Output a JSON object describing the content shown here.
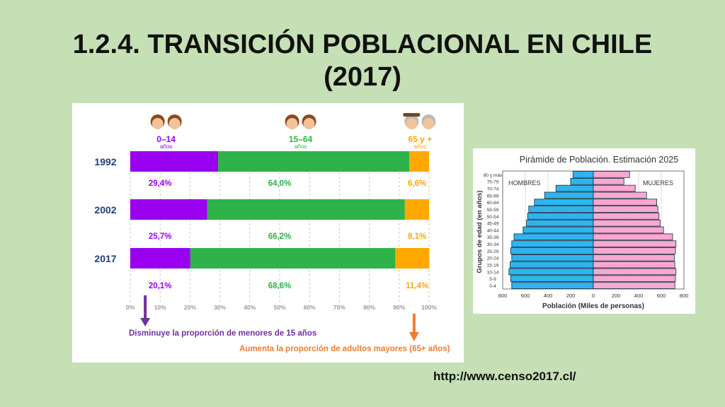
{
  "title": {
    "line1": "1.2.4. TRANSICIÓN POBLACIONAL EN CHILE",
    "line2": "(2017)"
  },
  "source_url": "http://www.censo2017.cl/",
  "colors": {
    "young": "#9900ee",
    "adult": "#2db34a",
    "old": "#ffa800",
    "men": "#2fb5ec",
    "women": "#f7a9cf",
    "year_label": "#1f3f7a"
  },
  "chart_data": [
    {
      "type": "bar",
      "stacked": true,
      "orientation": "horizontal",
      "categories": [
        "1992",
        "2002",
        "2017"
      ],
      "groups": [
        {
          "label": "0–14",
          "sublabel": "años",
          "icon": "children-icon"
        },
        {
          "label": "15–64",
          "sublabel": "años",
          "icon": "adults-icon"
        },
        {
          "label": "65 y +",
          "sublabel": "años",
          "icon": "elderly-icon"
        }
      ],
      "series": [
        {
          "values": [
            29.4,
            25.7,
            20.1
          ],
          "labels": [
            "29,4%",
            "25,7%",
            "20,1%"
          ]
        },
        {
          "values": [
            64.0,
            66.2,
            68.6
          ],
          "labels": [
            "64,0%",
            "66,2%",
            "68,6%"
          ]
        },
        {
          "values": [
            6.6,
            8.1,
            11.4
          ],
          "labels": [
            "6,6%",
            "8,1%",
            "11,4%"
          ]
        }
      ],
      "xticks": [
        "0%",
        "10%",
        "20%",
        "30%",
        "40%",
        "50%",
        "60%",
        "70%",
        "80%",
        "90%",
        "100%"
      ],
      "xlim": [
        0,
        100
      ],
      "annotations": [
        {
          "text": "Disminuye la proporción de menores de 15 años",
          "arrow": "down",
          "at": 5,
          "color": "#7030a0"
        },
        {
          "text": "Aumenta la proporción de adultos mayores (65+ años)",
          "arrow": "down",
          "at": 95,
          "color": "#ed7d31"
        }
      ]
    },
    {
      "type": "bar",
      "orientation": "horizontal",
      "subtype": "population-pyramid",
      "title": "Pirámide de Población. Estimación 2025",
      "xlabel": "Población  (Miles de personas)",
      "ylabel": "Grupos de edad (en años)",
      "legend": [
        "HOMBRES",
        "MUJERES"
      ],
      "categories": [
        "0-4",
        "5-9",
        "10-14",
        "15-19",
        "20-24",
        "25-29",
        "30-34",
        "35-39",
        "40-44",
        "45-49",
        "50-54",
        "55-59",
        "60-64",
        "65-69",
        "70-74",
        "75-79",
        "80 y más"
      ],
      "xticks": [
        "800",
        "600",
        "400",
        "200",
        "0",
        "200",
        "400",
        "600",
        "800"
      ],
      "xlim": [
        -800,
        800
      ],
      "series": [
        {
          "name": "HOMBRES",
          "values": [
            720,
            730,
            745,
            735,
            720,
            730,
            720,
            700,
            620,
            590,
            580,
            570,
            520,
            430,
            330,
            200,
            180
          ]
        },
        {
          "name": "MUJERES",
          "values": [
            720,
            725,
            730,
            720,
            715,
            725,
            730,
            700,
            620,
            590,
            580,
            570,
            560,
            470,
            370,
            270,
            320
          ]
        }
      ]
    }
  ]
}
